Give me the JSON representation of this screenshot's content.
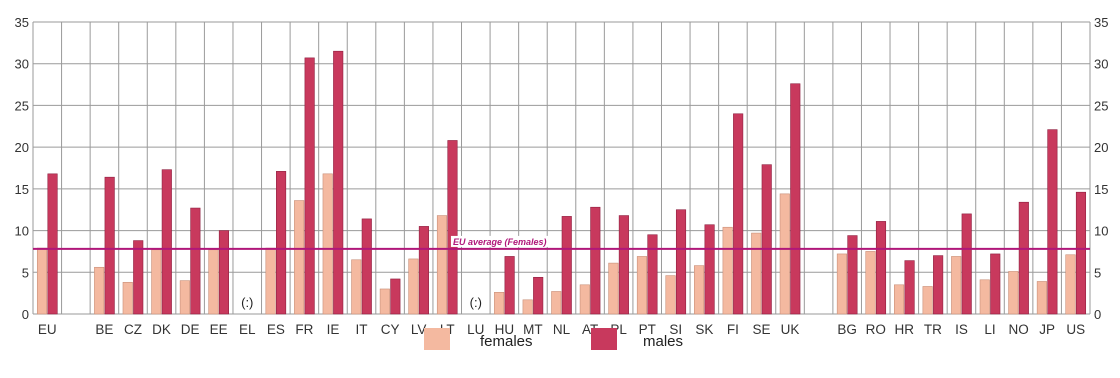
{
  "chart_data": {
    "type": "bar",
    "categories": [
      "EU",
      "",
      "BE",
      "CZ",
      "DK",
      "DE",
      "EE",
      "EL",
      "ES",
      "FR",
      "IE",
      "IT",
      "CY",
      "LV",
      "LT",
      "LU",
      "HU",
      "MT",
      "NL",
      "AT",
      "PL",
      "PT",
      "SI",
      "SK",
      "FI",
      "SE",
      "UK",
      "",
      "BG",
      "RO",
      "HR",
      "TR",
      "IS",
      "LI",
      "NO",
      "JP",
      "US"
    ],
    "series": [
      {
        "name": "females",
        "color": "#f4b9a0",
        "values": [
          7.9,
          null,
          5.6,
          3.8,
          7.7,
          4.0,
          7.7,
          null,
          7.9,
          13.6,
          16.8,
          6.5,
          3.0,
          6.6,
          11.8,
          null,
          2.6,
          1.7,
          2.7,
          3.5,
          6.1,
          6.9,
          4.6,
          5.8,
          10.4,
          9.7,
          14.4,
          null,
          7.2,
          7.5,
          3.5,
          3.3,
          6.9,
          4.1,
          5.1,
          3.9,
          7.1
        ]
      },
      {
        "name": "males",
        "color": "#c8395d",
        "values": [
          16.8,
          null,
          16.4,
          8.8,
          17.3,
          12.7,
          10.0,
          null,
          17.1,
          30.7,
          31.5,
          11.4,
          4.2,
          10.5,
          20.8,
          null,
          6.9,
          4.4,
          11.7,
          12.8,
          11.8,
          9.5,
          12.5,
          10.7,
          24.0,
          17.9,
          27.6,
          null,
          9.4,
          11.1,
          6.4,
          7.0,
          12.0,
          7.2,
          13.4,
          22.1,
          14.6
        ]
      }
    ],
    "missing_marker": "(:)",
    "missing_categories": [
      "EL",
      "LU"
    ],
    "reference_line": {
      "value": 7.8,
      "label": "EU average (Females)",
      "color": "#b0177a"
    },
    "yticks": [
      0,
      5,
      10,
      15,
      20,
      25,
      30,
      35
    ],
    "ylim": [
      0,
      35
    ],
    "grid": true,
    "legend_position": "bottom-center"
  }
}
